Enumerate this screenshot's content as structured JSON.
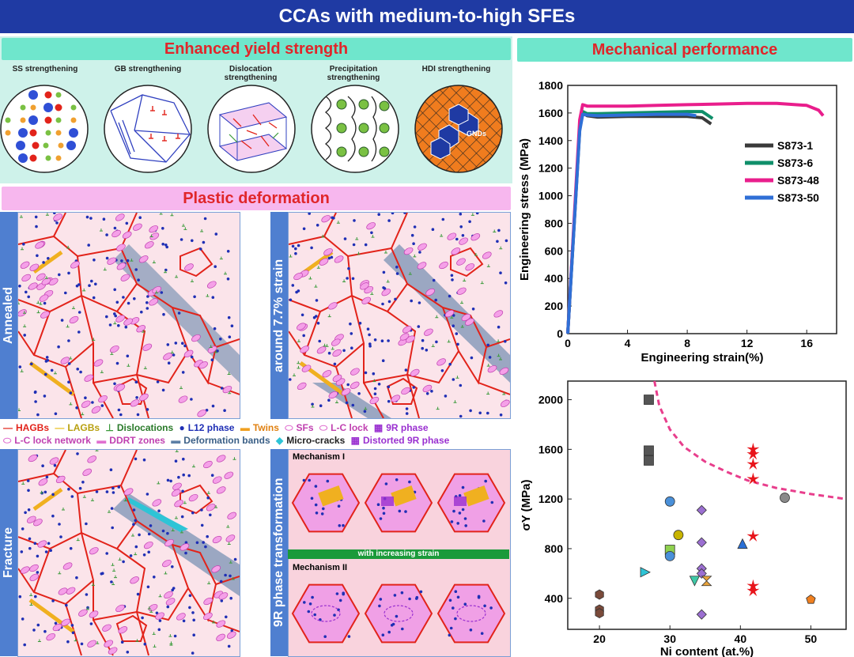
{
  "banner": "CCAs with medium-to-high SFEs",
  "yield": {
    "title": "Enhanced yield strength",
    "mechanisms": [
      "SS strengthening",
      "GB strengthening",
      "Dislocation strengthening",
      "Precipitation strengthening",
      "HDI strengthening"
    ],
    "gnds_label": "GNDs"
  },
  "plastic": {
    "title": "Plastic deformation",
    "panels": [
      "Annealed",
      "around 7.7% strain",
      "Fracture",
      "9R phase transformation"
    ],
    "mech1": "Mechanism I",
    "mech2": "Mechanism II",
    "with_strain": "with increasing strain"
  },
  "legend": {
    "row1": [
      "HAGBs",
      "LAGBs",
      "Dislocations",
      "L12 phase",
      "Twins",
      "SFs",
      "L-C lock",
      "9R phase"
    ],
    "row2": [
      "L-C lock network",
      "DDRT zones",
      "Deformation bands",
      "Micro-cracks",
      "Distorted 9R phase"
    ]
  },
  "mech_perf": {
    "title": "Mechanical performance"
  },
  "colors": {
    "banner": "#1f3aa3",
    "red_title": "#e0262a",
    "teal": "#6fe6cc",
    "pink": "#f7b7ee",
    "grain_red": "#e2231a",
    "blue_dot": "#1f2fb5"
  },
  "chart_data": [
    {
      "type": "line",
      "xlabel": "Engineering strain(%)",
      "ylabel": "Engineering stress (MPa)",
      "xlim": [
        0,
        18
      ],
      "ylim": [
        0,
        1800
      ],
      "xticks": [
        0,
        4,
        8,
        12,
        16
      ],
      "yticks": [
        0,
        200,
        400,
        600,
        800,
        1000,
        1200,
        1400,
        1600,
        1800
      ],
      "legend_position": "right",
      "series": [
        {
          "name": "S873-1",
          "color": "#3a3a3a",
          "x": [
            0,
            0.8,
            1.0,
            1.3,
            2,
            4,
            6,
            8,
            9,
            9.6
          ],
          "y": [
            0,
            1480,
            1600,
            1580,
            1570,
            1575,
            1575,
            1575,
            1565,
            1520
          ]
        },
        {
          "name": "S873-6",
          "color": "#0f8f6a",
          "x": [
            0,
            0.8,
            1.0,
            1.3,
            2,
            4,
            6,
            8,
            9,
            9.7
          ],
          "y": [
            0,
            1500,
            1610,
            1595,
            1595,
            1600,
            1605,
            1610,
            1610,
            1560
          ]
        },
        {
          "name": "S873-48",
          "color": "#e91e8c",
          "x": [
            0,
            0.8,
            1.0,
            1.3,
            2,
            4,
            6,
            8,
            10,
            12,
            14,
            16,
            16.8,
            17.1
          ],
          "y": [
            0,
            1550,
            1660,
            1650,
            1650,
            1650,
            1655,
            1660,
            1665,
            1670,
            1670,
            1655,
            1620,
            1580
          ]
        },
        {
          "name": "S873-50",
          "color": "#2f6fd6",
          "x": [
            0,
            0.8,
            1.0,
            1.3,
            2,
            4,
            6,
            8,
            8.6
          ],
          "y": [
            0,
            1470,
            1590,
            1585,
            1580,
            1585,
            1590,
            1590,
            1580
          ]
        }
      ]
    },
    {
      "type": "scatter",
      "xlabel": "Ni content (at.%)",
      "ylabel": "σY (MPa)",
      "xlim": [
        15.5,
        55
      ],
      "ylim": [
        150,
        2150
      ],
      "xticks": [
        20,
        30,
        40,
        50
      ],
      "yticks": [
        400,
        800,
        1200,
        1600,
        2000
      ],
      "trend_curve": {
        "color": "#e83e8c",
        "x": [
          27.8,
          28.5,
          30,
          32,
          35,
          38,
          41,
          45,
          50,
          55
        ],
        "y": [
          2150,
          1950,
          1760,
          1620,
          1500,
          1420,
          1350,
          1290,
          1240,
          1200
        ]
      },
      "points": [
        {
          "x": 20,
          "y": 430,
          "shape": "hexagon",
          "color": "#7a4a3a"
        },
        {
          "x": 20,
          "y": 310,
          "shape": "hexagon",
          "color": "#7a4a3a"
        },
        {
          "x": 20,
          "y": 280,
          "shape": "hexagon",
          "color": "#7a4a3a"
        },
        {
          "x": 27,
          "y": 2000,
          "shape": "square",
          "color": "#555555"
        },
        {
          "x": 27,
          "y": 1590,
          "shape": "square",
          "color": "#555555"
        },
        {
          "x": 27,
          "y": 1510,
          "shape": "square",
          "color": "#555555"
        },
        {
          "x": 26.5,
          "y": 610,
          "shape": "triangle-right",
          "color": "#2ec4d6"
        },
        {
          "x": 30,
          "y": 1180,
          "shape": "circle",
          "color": "#4a90d9"
        },
        {
          "x": 30,
          "y": 790,
          "shape": "square",
          "color": "#8fd14f"
        },
        {
          "x": 30,
          "y": 740,
          "shape": "circle",
          "color": "#4a90d9"
        },
        {
          "x": 31.2,
          "y": 910,
          "shape": "circle",
          "color": "#c8b400"
        },
        {
          "x": 33.5,
          "y": 540,
          "shape": "triangle-down",
          "color": "#3ec9a7"
        },
        {
          "x": 34.5,
          "y": 1110,
          "shape": "diamond",
          "color": "#9b6fd1"
        },
        {
          "x": 34.5,
          "y": 850,
          "shape": "diamond",
          "color": "#9b6fd1"
        },
        {
          "x": 34.5,
          "y": 640,
          "shape": "diamond",
          "color": "#9b6fd1"
        },
        {
          "x": 34.5,
          "y": 600,
          "shape": "diamond",
          "color": "#9b6fd1"
        },
        {
          "x": 34.5,
          "y": 270,
          "shape": "diamond",
          "color": "#9b6fd1"
        },
        {
          "x": 35.2,
          "y": 540,
          "shape": "bowtie",
          "color": "#e8a33a"
        },
        {
          "x": 40.3,
          "y": 840,
          "shape": "triangle",
          "color": "#2a6fd6"
        },
        {
          "x": 41.8,
          "y": 1600,
          "shape": "star",
          "color": "#e8151b"
        },
        {
          "x": 41.8,
          "y": 1560,
          "shape": "star",
          "color": "#e8151b"
        },
        {
          "x": 41.8,
          "y": 1480,
          "shape": "star",
          "color": "#e8151b"
        },
        {
          "x": 41.8,
          "y": 1360,
          "shape": "star",
          "color": "#e8151b"
        },
        {
          "x": 41.8,
          "y": 900,
          "shape": "star",
          "color": "#e8151b"
        },
        {
          "x": 41.8,
          "y": 500,
          "shape": "star",
          "color": "#e8151b"
        },
        {
          "x": 41.8,
          "y": 460,
          "shape": "star",
          "color": "#e8151b"
        },
        {
          "x": 46.3,
          "y": 1210,
          "shape": "circle",
          "color": "#8a8a8a"
        },
        {
          "x": 50,
          "y": 390,
          "shape": "pentagon",
          "color": "#f08020"
        }
      ]
    }
  ]
}
